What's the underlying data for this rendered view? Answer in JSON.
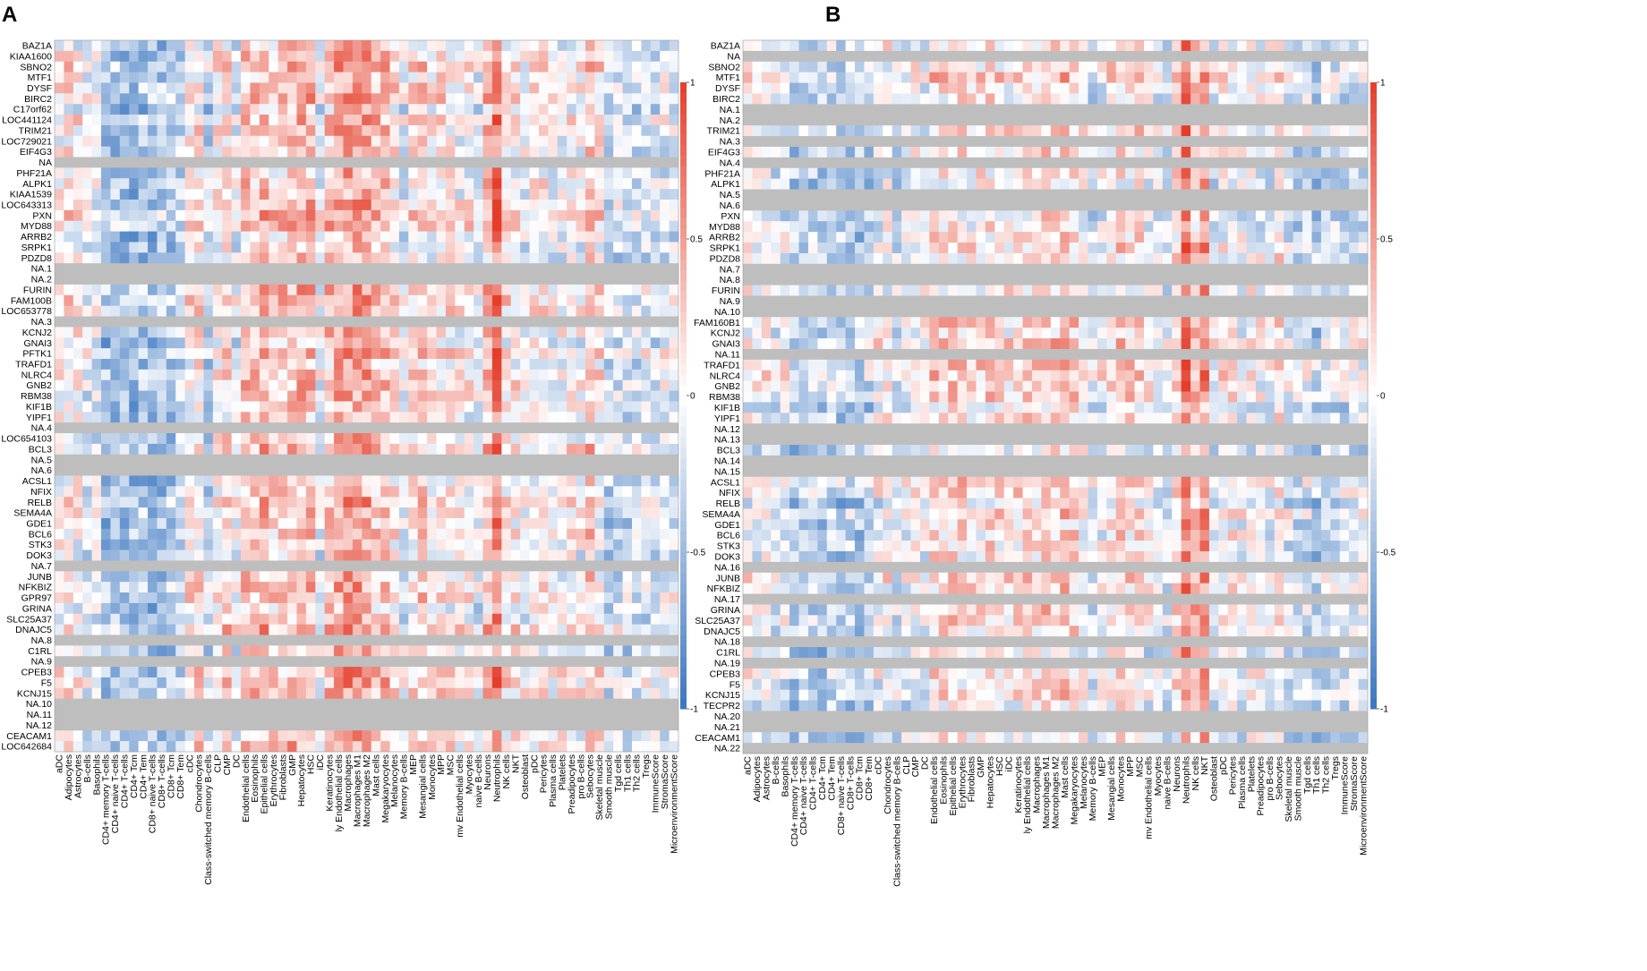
{
  "chart_data": [
    {
      "type": "heatmap",
      "panel_label": "A",
      "rows": [
        "BAZ1A",
        "KIAA1600",
        "SBNO2",
        "MTF1",
        "DYSF",
        "BIRC2",
        "C17orf62",
        "LOC441124",
        "TRIM21",
        "LOC729021",
        "EIF4G3",
        "NA",
        "PHF21A",
        "ALPK1",
        "KIAA1539",
        "LOC643313",
        "PXN",
        "MYD88",
        "ARRB2",
        "SRPK1",
        "PDZD8",
        "NA.1",
        "NA.2",
        "FURIN",
        "FAM100B",
        "LOC653778",
        "NA.3",
        "KCNJ2",
        "GNAI3",
        "PFTK1",
        "TRAFD1",
        "NLRC4",
        "GNB2",
        "RBM38",
        "KIF1B",
        "YIPF1",
        "NA.4",
        "LOC654103",
        "BCL3",
        "NA.5",
        "NA.6",
        "ACSL1",
        "NFIX",
        "RELB",
        "SEMA4A",
        "GDE1",
        "BCL6",
        "STK3",
        "DOK3",
        "NA.7",
        "JUNB",
        "NFKBIZ",
        "GPR97",
        "GRINA",
        "SLC25A37",
        "DNAJC5",
        "NA.8",
        "C1RL",
        "NA.9",
        "CPEB3",
        "F5",
        "KCNJ15",
        "NA.10",
        "NA.11",
        "NA.12",
        "CEACAM1",
        "LOC642684"
      ],
      "columns": [
        "aDC",
        "Adipocytes",
        "Astrocytes",
        "B-cells",
        "Basophils",
        "CD4+ memory T-cells",
        "CD4+ naive T-cells",
        "CD4+ T-cells",
        "CD4+ Tcm",
        "CD4+ Tem",
        "CD8+ naive T-cells",
        "CD8+ T-cells",
        "CD8+ Tcm",
        "CD8+ Tem",
        "cDC",
        "Chondrocytes",
        "Class-switched memory B-cells",
        "CLP",
        "CMP",
        "DC",
        "Endothelial cells",
        "Eosinophils",
        "Epithelial cells",
        "Erythrocytes",
        "Fibroblasts",
        "GMP",
        "Hepatocytes",
        "HSC",
        "iDC",
        "Keratinocytes",
        "ly Endothelial cells",
        "Macrophages",
        "Macrophages M1",
        "Macrophages M2",
        "Mast cells",
        "Megakaryocytes",
        "Melanocytes",
        "Memory B-cells",
        "MEP",
        "Mesangial cells",
        "Monocytes",
        "MPP",
        "MSC",
        "mv Endothelial cells",
        "Myocytes",
        "naive B-cells",
        "Neurons",
        "Neutrophils",
        "NK cells",
        "NKT",
        "Osteoblast",
        "pDC",
        "Pericytes",
        "Plasma cells",
        "Platelets",
        "Preadipocytes",
        "pro B-cells",
        "Sebocytes",
        "Skeletal muscle",
        "Smooth muscle",
        "Tgd cells",
        "Th1 cells",
        "Th2 cells",
        "Tregs",
        "ImmuneScore",
        "StromaScore",
        "MicroenvironmentScore"
      ],
      "na_rows": [
        "NA",
        "NA.1",
        "NA.2",
        "NA.3",
        "NA.4",
        "NA.5",
        "NA.6",
        "NA.7",
        "NA.8",
        "NA.9",
        "NA.10",
        "NA.11",
        "NA.12"
      ],
      "value_range": [
        -1,
        1
      ],
      "note": "Correlation matrix of genes vs. cell-type scores; grey rows are NA. Cell values are approximations of the color pattern."
    },
    {
      "type": "heatmap",
      "panel_label": "B",
      "rows": [
        "BAZ1A",
        "NA",
        "SBNO2",
        "MTF1",
        "DYSF",
        "BIRC2",
        "NA.1",
        "NA.2",
        "TRIM21",
        "NA.3",
        "EIF4G3",
        "NA.4",
        "PHF21A",
        "ALPK1",
        "NA.5",
        "NA.6",
        "PXN",
        "MYD88",
        "ARRB2",
        "SRPK1",
        "PDZD8",
        "NA.7",
        "NA.8",
        "FURIN",
        "NA.9",
        "NA.10",
        "FAM160B1",
        "KCNJ2",
        "GNAI3",
        "NA.11",
        "TRAFD1",
        "NLRC4",
        "GNB2",
        "RBM38",
        "KIF1B",
        "YIPF1",
        "NA.12",
        "NA.13",
        "BCL3",
        "NA.14",
        "NA.15",
        "ACSL1",
        "NFIX",
        "RELB",
        "SEMA4A",
        "GDE1",
        "BCL6",
        "STK3",
        "DOK3",
        "NA.16",
        "JUNB",
        "NFKBIZ",
        "NA.17",
        "GRINA",
        "SLC25A37",
        "DNAJC5",
        "NA.18",
        "C1RL",
        "NA.19",
        "CPEB3",
        "F5",
        "KCNJ15",
        "TECPR2",
        "NA.20",
        "NA.21",
        "CEACAM1",
        "NA.22"
      ],
      "columns": [
        "aDC",
        "Adipocytes",
        "Astrocytes",
        "B-cells",
        "Basophils",
        "CD4+ memory T-cells",
        "CD4+ naive T-cells",
        "CD4+ T-cells",
        "CD4+ Tcm",
        "CD4+ Tem",
        "CD8+ naive T-cells",
        "CD8+ T-cells",
        "CD8+ Tcm",
        "CD8+ Tem",
        "cDC",
        "Chondrocytes",
        "Class-switched memory B-cells",
        "CLP",
        "CMP",
        "DC",
        "Endothelial cells",
        "Eosinophils",
        "Epithelial cells",
        "Erythrocytes",
        "Fibroblasts",
        "GMP",
        "Hepatocytes",
        "HSC",
        "iDC",
        "Keratinocytes",
        "ly Endothelial cells",
        "Macrophages",
        "Macrophages M1",
        "Macrophages M2",
        "Mast cells",
        "Megakaryocytes",
        "Melanocytes",
        "Memory B-cells",
        "MEP",
        "Mesangial cells",
        "Monocytes",
        "MPP",
        "MSC",
        "mv Endothelial cells",
        "Myocytes",
        "naive B-cells",
        "Neurons",
        "Neutrophils",
        "NK cells",
        "NKT",
        "Osteoblast",
        "pDC",
        "Pericytes",
        "Plasma cells",
        "Platelets",
        "Preadipocytes",
        "pro B-cells",
        "Sebocytes",
        "Skeletal muscle",
        "Smooth muscle",
        "Tgd cells",
        "Th1 cells",
        "Th2 cells",
        "Tregs",
        "ImmuneScore",
        "StromaScore",
        "MicroenvironmentScore"
      ],
      "na_rows": [
        "NA",
        "NA.1",
        "NA.2",
        "NA.3",
        "NA.4",
        "NA.5",
        "NA.6",
        "NA.7",
        "NA.8",
        "NA.9",
        "NA.10",
        "NA.11",
        "NA.12",
        "NA.13",
        "NA.14",
        "NA.15",
        "NA.16",
        "NA.17",
        "NA.18",
        "NA.19",
        "NA.20",
        "NA.21",
        "NA.22"
      ],
      "value_range": [
        -1,
        1
      ],
      "note": "Correlation matrix of genes vs. cell-type scores; grey rows are NA. Cell values are approximations of the color pattern."
    }
  ],
  "colorbar": {
    "ticks": [
      "1",
      "0.5",
      "0",
      "-0.5",
      "-1"
    ],
    "low_color": "#3b76c0",
    "mid_color": "#ffffff",
    "high_color": "#e43e2b",
    "na_color": "#bebebe"
  }
}
